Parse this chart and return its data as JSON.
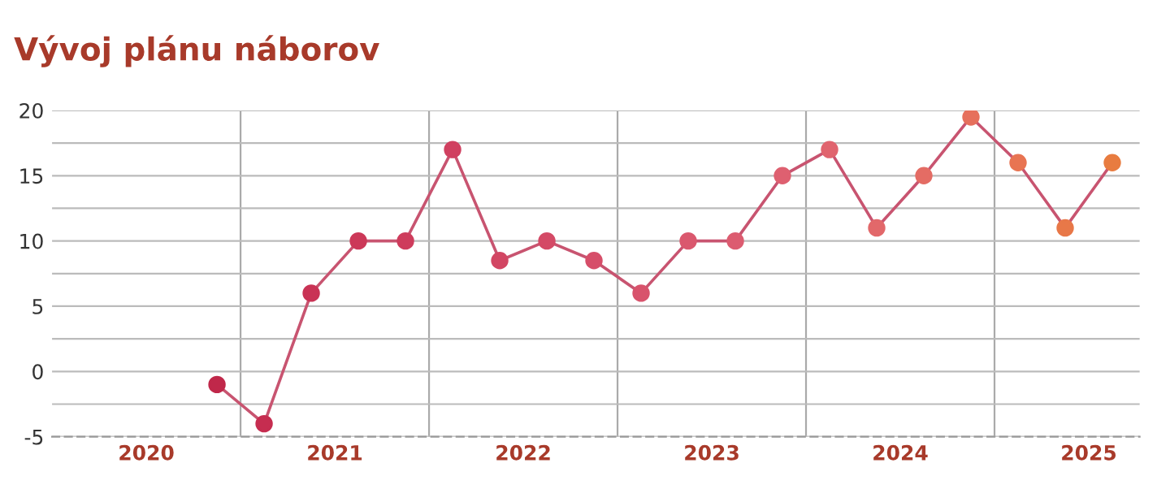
{
  "chart_data": {
    "type": "line",
    "title": "Vývoj plánu náborov",
    "x": [
      2020.875,
      2021.125,
      2021.375,
      2021.625,
      2021.875,
      2022.125,
      2022.375,
      2022.625,
      2022.875,
      2023.125,
      2023.375,
      2023.625,
      2023.875,
      2024.125,
      2024.375,
      2024.625,
      2024.875,
      2025.125,
      2025.375,
      2025.625
    ],
    "series": [
      {
        "color": "#c85470",
        "values": [
          -1,
          -4,
          6,
          10,
          10,
          17,
          8.5,
          10,
          8.5,
          6,
          10,
          10,
          15,
          17,
          11,
          15,
          19.5,
          16,
          11,
          16
        ],
        "colors": [
          "#c0284a",
          "#c62d50",
          "#c93355",
          "#cc3858",
          "#ce3c5c",
          "#d04060",
          "#d24663",
          "#d44a66",
          "#d64e69",
          "#d8536c",
          "#da586e",
          "#dc5c70",
          "#de6070",
          "#e0646e",
          "#e2686a",
          "#e46c64",
          "#e6705c",
          "#e87452",
          "#e87848",
          "#e87c40"
        ]
      }
    ],
    "marker": "circle",
    "line_style": "solid",
    "xlim": [
      2020,
      2025.77
    ],
    "xticks": [
      {
        "value": 2020.5,
        "label": "2020"
      },
      {
        "value": 2021.5,
        "label": "2021"
      },
      {
        "value": 2022.5,
        "label": "2022"
      },
      {
        "value": 2023.5,
        "label": "2023"
      },
      {
        "value": 2024.5,
        "label": "2024"
      },
      {
        "value": 2025.5,
        "label": "2025"
      }
    ],
    "ylim": [
      -5,
      20
    ],
    "yticks": [
      -5,
      {
        "value": -2.5,
        "label": null
      },
      0,
      {
        "value": 2.5,
        "label": null
      },
      5,
      {
        "value": 7.5,
        "label": null
      },
      10,
      {
        "value": 12.5,
        "label": null
      },
      15,
      {
        "value": 17.5,
        "label": null
      },
      20
    ],
    "grid": "y",
    "ref_lines": [
      {
        "axis": "x",
        "value": 2021,
        "label": null,
        "color": "#aaaaaa"
      },
      {
        "axis": "x",
        "value": 2022,
        "label": null,
        "color": "#aaaaaa"
      },
      {
        "axis": "x",
        "value": 2023,
        "label": null,
        "color": "#aaaaaa"
      },
      {
        "axis": "x",
        "value": 2024,
        "label": null,
        "color": "#aaaaaa"
      },
      {
        "axis": "x",
        "value": 2025,
        "label": null,
        "color": "#aaaaaa"
      }
    ]
  }
}
